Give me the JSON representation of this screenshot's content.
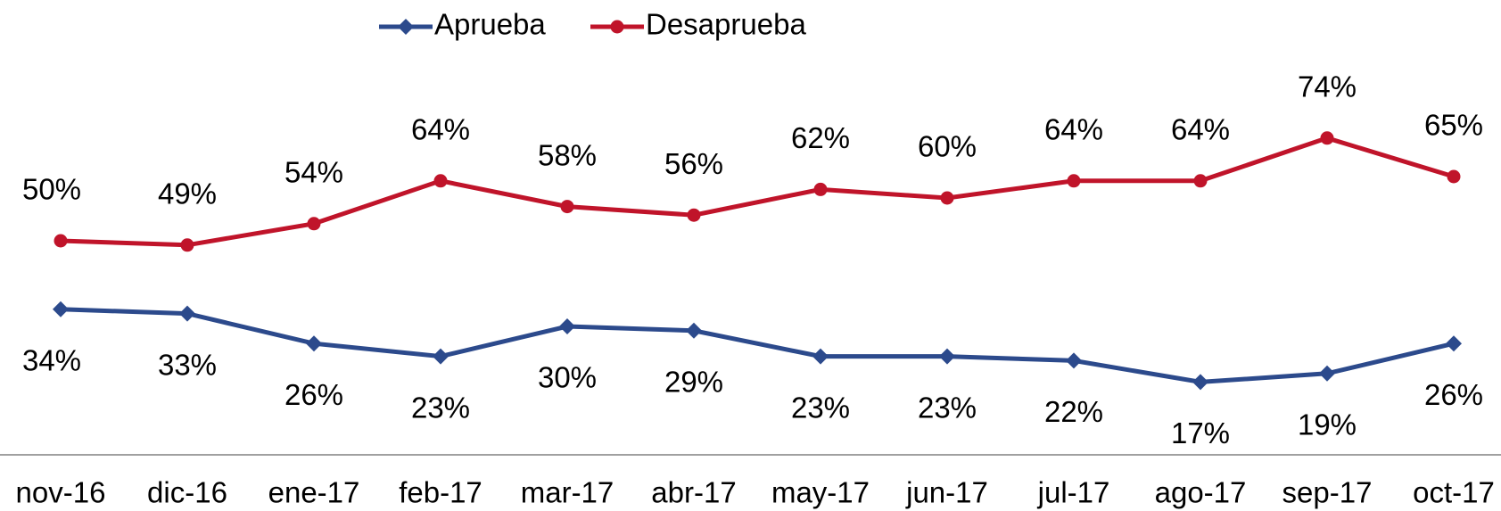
{
  "chart_data": {
    "type": "line",
    "categories": [
      "nov-16",
      "dic-16",
      "ene-17",
      "feb-17",
      "mar-17",
      "abr-17",
      "may-17",
      "jun-17",
      "jul-17",
      "ago-17",
      "sep-17",
      "oct-17"
    ],
    "series": [
      {
        "name": "Aprueba",
        "color": "#2c4a8c",
        "marker": "diamond",
        "values": [
          34,
          33,
          26,
          23,
          30,
          29,
          23,
          23,
          22,
          17,
          19,
          26
        ],
        "value_labels": [
          "34%",
          "33%",
          "26%",
          "23%",
          "30%",
          "29%",
          "23%",
          "23%",
          "22%",
          "17%",
          "19%",
          "26%"
        ]
      },
      {
        "name": "Desaprueba",
        "color": "#c0142a",
        "marker": "circle",
        "values": [
          50,
          49,
          54,
          64,
          58,
          56,
          62,
          60,
          64,
          64,
          74,
          65
        ],
        "value_labels": [
          "50%",
          "49%",
          "54%",
          "64%",
          "58%",
          "56%",
          "62%",
          "60%",
          "64%",
          "64%",
          "74%",
          "65%"
        ]
      }
    ],
    "ylim": [
      0,
      100
    ],
    "legend": "top"
  }
}
